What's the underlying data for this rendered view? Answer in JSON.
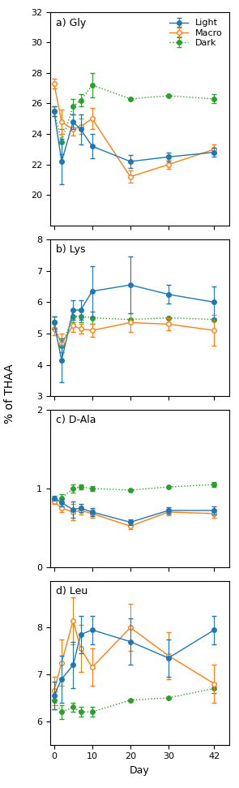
{
  "chart_data": [
    {
      "type": "line",
      "title": "a) Gly",
      "x": [
        0,
        2,
        5,
        7,
        10,
        20,
        30,
        42
      ],
      "xlim": [
        -1,
        46
      ],
      "xticks": [
        0,
        10,
        20,
        30,
        42
      ],
      "ylim": [
        18,
        32
      ],
      "yticks": [
        20,
        22,
        24,
        26,
        28,
        30,
        32
      ],
      "tick_labels": "y",
      "legend": "upper right",
      "series": [
        {
          "name": "Light",
          "marker": "circle",
          "line_style": "solid",
          "values": [
            25.5,
            22.2,
            24.8,
            24.3,
            23.2,
            22.2,
            22.5,
            22.8
          ],
          "yerr": [
            0.3,
            1.5,
            0.5,
            1.0,
            0.8,
            0.4,
            0.3,
            0.3
          ]
        },
        {
          "name": "Macro",
          "marker": "hollow",
          "line_style": "solid",
          "values": [
            27.3,
            24.8,
            24.3,
            24.5,
            25.0,
            21.2,
            22.0,
            23.0
          ],
          "yerr": [
            0.3,
            0.8,
            0.4,
            0.5,
            0.7,
            0.4,
            0.3,
            0.3
          ]
        },
        {
          "name": "Dark",
          "marker": "circle",
          "line_style": "dotted",
          "values": [
            25.5,
            23.5,
            25.8,
            26.2,
            27.2,
            26.3,
            26.5,
            26.3
          ],
          "yerr": [
            0.3,
            0.8,
            0.5,
            0.4,
            0.8,
            0.0,
            0.0,
            0.3
          ]
        }
      ]
    },
    {
      "type": "line",
      "title": "b) Lys",
      "x": [
        0,
        2,
        5,
        7,
        10,
        20,
        30,
        42
      ],
      "xlim": [
        -1,
        46
      ],
      "xticks": [
        0,
        10,
        20,
        30,
        42
      ],
      "ylim": [
        3,
        8
      ],
      "yticks": [
        3,
        4,
        5,
        6,
        7,
        8
      ],
      "tick_labels": "y",
      "series": [
        {
          "name": "Light",
          "marker": "circle",
          "line_style": "solid",
          "values": [
            5.35,
            4.15,
            5.75,
            5.75,
            6.35,
            6.55,
            6.25,
            6.0
          ],
          "yerr": [
            0.2,
            0.7,
            0.3,
            0.3,
            0.8,
            0.9,
            0.3,
            0.5
          ]
        },
        {
          "name": "Macro",
          "marker": "hollow",
          "line_style": "solid",
          "values": [
            5.15,
            4.7,
            5.25,
            5.15,
            5.1,
            5.35,
            5.3,
            5.1
          ],
          "yerr": [
            0.2,
            0.3,
            0.2,
            0.15,
            0.2,
            0.3,
            0.2,
            0.5
          ]
        },
        {
          "name": "Dark",
          "marker": "circle",
          "line_style": "dotted",
          "values": [
            5.35,
            4.6,
            5.55,
            5.55,
            5.5,
            5.45,
            5.5,
            5.45
          ],
          "yerr": [
            0.2,
            0.2,
            0.2,
            0.2,
            0.2,
            0.0,
            0.0,
            0.0
          ]
        }
      ]
    },
    {
      "type": "line",
      "title": "c) D-Ala",
      "x": [
        0,
        2,
        5,
        7,
        10,
        20,
        30,
        42
      ],
      "xlim": [
        -1,
        46
      ],
      "xticks": [
        0,
        10,
        20,
        30,
        42
      ],
      "ylim": [
        0,
        2
      ],
      "yticks": [
        0,
        1,
        2
      ],
      "tick_labels": "y",
      "series": [
        {
          "name": "Light",
          "marker": "circle",
          "line_style": "solid",
          "values": [
            0.88,
            0.82,
            0.73,
            0.75,
            0.7,
            0.57,
            0.72,
            0.72
          ],
          "yerr": [
            0.03,
            0.05,
            0.1,
            0.05,
            0.05,
            0.04,
            0.04,
            0.05
          ]
        },
        {
          "name": "Macro",
          "marker": "hollow",
          "line_style": "solid",
          "values": [
            0.83,
            0.75,
            0.7,
            0.72,
            0.68,
            0.52,
            0.7,
            0.68
          ],
          "yerr": [
            0.03,
            0.05,
            0.1,
            0.05,
            0.05,
            0.04,
            0.04,
            0.05
          ]
        },
        {
          "name": "Dark",
          "marker": "circle",
          "line_style": "dotted",
          "values": [
            0.85,
            0.88,
            1.0,
            1.02,
            1.0,
            0.98,
            1.02,
            1.05
          ],
          "yerr": [
            0.03,
            0.05,
            0.05,
            0.03,
            0.03,
            0.0,
            0.0,
            0.03
          ]
        }
      ]
    },
    {
      "type": "line",
      "title": "d) Leu",
      "xlabel": "Day",
      "x": [
        0,
        2,
        5,
        7,
        10,
        20,
        30,
        42
      ],
      "xlim": [
        -1,
        46
      ],
      "xticks": [
        0,
        10,
        20,
        30,
        42
      ],
      "ylim": [
        5.5,
        9.0
      ],
      "yticks": [
        6,
        7,
        8
      ],
      "series": [
        {
          "name": "Light",
          "marker": "circle",
          "line_style": "solid",
          "values": [
            6.55,
            6.9,
            7.2,
            7.85,
            7.95,
            7.7,
            7.35,
            7.95
          ],
          "yerr": [
            0.3,
            0.5,
            0.5,
            0.4,
            0.3,
            0.5,
            0.4,
            0.3
          ]
        },
        {
          "name": "Macro",
          "marker": "hollow",
          "line_style": "solid",
          "values": [
            6.65,
            7.25,
            8.15,
            7.55,
            7.15,
            8.0,
            7.4,
            6.8
          ],
          "yerr": [
            0.3,
            0.5,
            0.5,
            0.5,
            0.4,
            0.5,
            0.5,
            0.4
          ]
        },
        {
          "name": "Dark",
          "marker": "circle",
          "line_style": "dotted",
          "values": [
            6.45,
            6.2,
            6.3,
            6.2,
            6.2,
            6.45,
            6.5,
            6.7
          ],
          "yerr": [
            0.2,
            0.15,
            0.1,
            0.1,
            0.1,
            0.0,
            0.0,
            0.1
          ]
        }
      ]
    }
  ],
  "ylabel": "% of THAA"
}
